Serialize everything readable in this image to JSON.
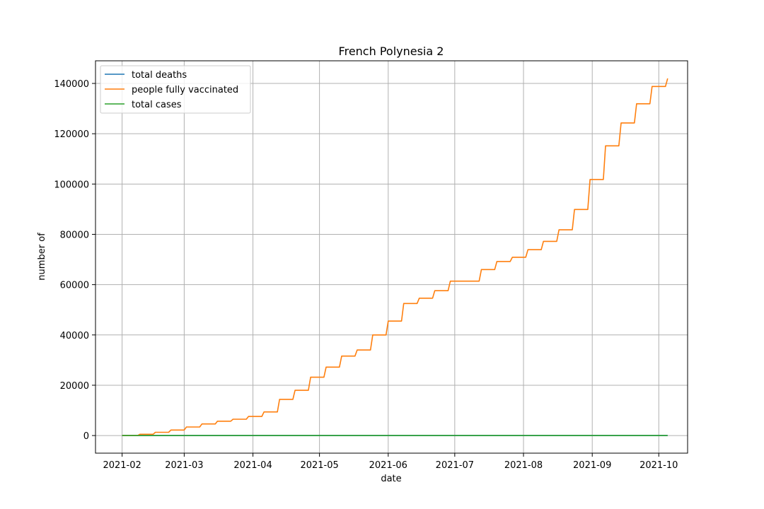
{
  "chart_data": {
    "type": "line",
    "title": "French Polynesia 2",
    "xlabel": "date",
    "ylabel": "number of",
    "x_tick_labels": [
      "2021-02",
      "2021-03",
      "2021-04",
      "2021-05",
      "2021-06",
      "2021-07",
      "2021-08",
      "2021-09",
      "2021-10"
    ],
    "y_tick_labels": [
      "0",
      "20000",
      "40000",
      "60000",
      "80000",
      "100000",
      "120000",
      "140000"
    ],
    "y_ticks": [
      0,
      20000,
      40000,
      60000,
      80000,
      100000,
      120000,
      140000
    ],
    "xlim": [
      "2021-01-20",
      "2021-10-14"
    ],
    "ylim": [
      -7000,
      149000
    ],
    "grid": true,
    "legend_position": "top-left",
    "colors": {
      "total deaths": "#1f77b4",
      "people fully vaccinated": "#ff7f0e",
      "total cases": "#2ca02c",
      "grid": "#b0b0b0"
    },
    "series": [
      {
        "name": "total deaths",
        "points": [
          [
            "2021-02-01",
            0
          ],
          [
            "2021-10-05",
            0
          ]
        ]
      },
      {
        "name": "people fully vaccinated",
        "points": [
          [
            "2021-02-01",
            0
          ],
          [
            "2021-02-08",
            0
          ],
          [
            "2021-02-09",
            500
          ],
          [
            "2021-02-15",
            500
          ],
          [
            "2021-02-16",
            1300
          ],
          [
            "2021-02-22",
            1300
          ],
          [
            "2021-02-23",
            2200
          ],
          [
            "2021-03-01",
            2200
          ],
          [
            "2021-03-02",
            3400
          ],
          [
            "2021-03-08",
            3400
          ],
          [
            "2021-03-09",
            4600
          ],
          [
            "2021-03-15",
            4600
          ],
          [
            "2021-03-16",
            5700
          ],
          [
            "2021-03-22",
            5700
          ],
          [
            "2021-03-23",
            6500
          ],
          [
            "2021-03-29",
            6500
          ],
          [
            "2021-03-30",
            7600
          ],
          [
            "2021-04-05",
            7600
          ],
          [
            "2021-04-06",
            9400
          ],
          [
            "2021-04-12",
            9400
          ],
          [
            "2021-04-13",
            14400
          ],
          [
            "2021-04-19",
            14400
          ],
          [
            "2021-04-20",
            18000
          ],
          [
            "2021-04-26",
            18000
          ],
          [
            "2021-04-27",
            23200
          ],
          [
            "2021-05-03",
            23200
          ],
          [
            "2021-05-04",
            27200
          ],
          [
            "2021-05-10",
            27200
          ],
          [
            "2021-05-11",
            31600
          ],
          [
            "2021-05-17",
            31600
          ],
          [
            "2021-05-18",
            34000
          ],
          [
            "2021-05-24",
            34000
          ],
          [
            "2021-05-25",
            40000
          ],
          [
            "2021-05-31",
            40000
          ],
          [
            "2021-06-01",
            45500
          ],
          [
            "2021-06-07",
            45500
          ],
          [
            "2021-06-08",
            52500
          ],
          [
            "2021-06-14",
            52500
          ],
          [
            "2021-06-15",
            54600
          ],
          [
            "2021-06-21",
            54600
          ],
          [
            "2021-06-22",
            57600
          ],
          [
            "2021-06-28",
            57600
          ],
          [
            "2021-06-29",
            61400
          ],
          [
            "2021-07-12",
            61400
          ],
          [
            "2021-07-13",
            66000
          ],
          [
            "2021-07-19",
            66000
          ],
          [
            "2021-07-20",
            69200
          ],
          [
            "2021-07-26",
            69200
          ],
          [
            "2021-07-27",
            70900
          ],
          [
            "2021-08-02",
            70900
          ],
          [
            "2021-08-03",
            73900
          ],
          [
            "2021-08-09",
            73900
          ],
          [
            "2021-08-10",
            77200
          ],
          [
            "2021-08-16",
            77200
          ],
          [
            "2021-08-17",
            81800
          ],
          [
            "2021-08-23",
            81800
          ],
          [
            "2021-08-24",
            89900
          ],
          [
            "2021-08-30",
            89900
          ],
          [
            "2021-08-31",
            101800
          ],
          [
            "2021-09-06",
            101800
          ],
          [
            "2021-09-07",
            115200
          ],
          [
            "2021-09-13",
            115200
          ],
          [
            "2021-09-14",
            124300
          ],
          [
            "2021-09-20",
            124300
          ],
          [
            "2021-09-21",
            131900
          ],
          [
            "2021-09-27",
            131900
          ],
          [
            "2021-09-28",
            138800
          ],
          [
            "2021-10-04",
            138800
          ],
          [
            "2021-10-05",
            142000
          ]
        ]
      },
      {
        "name": "total cases",
        "points": [
          [
            "2021-02-01",
            0
          ],
          [
            "2021-10-05",
            0
          ]
        ]
      }
    ]
  }
}
